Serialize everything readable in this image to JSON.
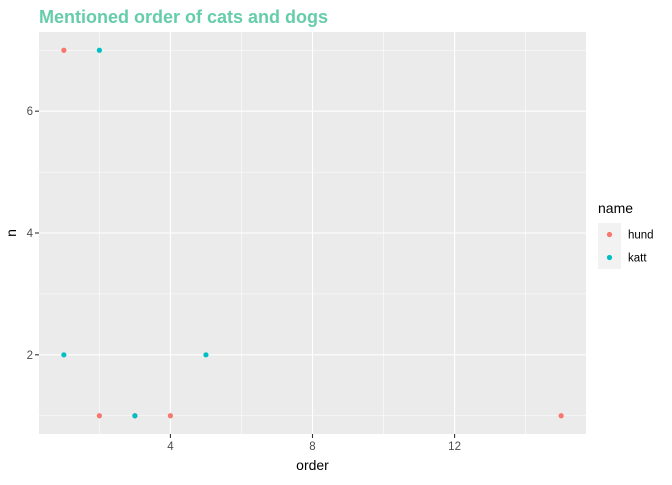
{
  "chart_data": {
    "type": "scatter",
    "title": "Mentioned order of cats and dogs",
    "title_color": "#66CDAA",
    "xlabel": "order",
    "ylabel": "n",
    "xlim": [
      0.3,
      15.7
    ],
    "ylim": [
      0.7,
      7.3
    ],
    "x_ticks": [
      4,
      8,
      12
    ],
    "x_tick_labels": [
      "4",
      "8",
      "12"
    ],
    "x_minor_ticks": [
      2,
      6,
      10,
      14
    ],
    "y_ticks": [
      2,
      4,
      6
    ],
    "y_tick_labels": [
      "2",
      "4",
      "6"
    ],
    "y_minor_ticks": [
      1,
      3,
      5,
      7
    ],
    "grid": true,
    "panel_background": "#EBEBEB",
    "grid_color": "#FFFFFF",
    "legend": {
      "title": "name",
      "position": "right"
    },
    "series": [
      {
        "name": "hund",
        "color": "#F8766D",
        "points": [
          {
            "x": 1,
            "y": 7
          },
          {
            "x": 2,
            "y": 1
          },
          {
            "x": 3,
            "y": 1
          },
          {
            "x": 4,
            "y": 1
          },
          {
            "x": 15,
            "y": 1
          }
        ]
      },
      {
        "name": "katt",
        "color": "#00BFC4",
        "points": [
          {
            "x": 2,
            "y": 7
          },
          {
            "x": 1,
            "y": 2
          },
          {
            "x": 5,
            "y": 2
          },
          {
            "x": 3,
            "y": 1
          }
        ]
      }
    ]
  }
}
